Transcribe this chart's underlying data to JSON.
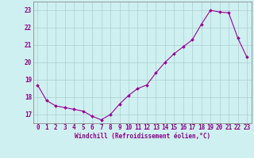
{
  "x": [
    0,
    1,
    2,
    3,
    4,
    5,
    6,
    7,
    8,
    9,
    10,
    11,
    12,
    13,
    14,
    15,
    16,
    17,
    18,
    19,
    20,
    21,
    22,
    23
  ],
  "y": [
    18.7,
    17.8,
    17.5,
    17.4,
    17.3,
    17.2,
    16.9,
    16.7,
    17.0,
    17.6,
    18.1,
    18.5,
    18.7,
    19.4,
    20.0,
    20.5,
    20.9,
    21.3,
    22.2,
    23.0,
    22.9,
    22.85,
    21.4,
    20.3
  ],
  "line_color": "#990099",
  "marker_color": "#990099",
  "bg_color": "#cff0f0",
  "grid_color": "#aacece",
  "xlabel": "Windchill (Refroidissement éolien,°C)",
  "ylim": [
    16.5,
    23.5
  ],
  "xlim": [
    -0.5,
    23.5
  ],
  "yticks": [
    17,
    18,
    19,
    20,
    21,
    22,
    23
  ],
  "xtick_labels": [
    "0",
    "1",
    "2",
    "3",
    "4",
    "5",
    "6",
    "7",
    "8",
    "9",
    "10",
    "11",
    "12",
    "13",
    "14",
    "15",
    "16",
    "17",
    "18",
    "19",
    "20",
    "21",
    "22",
    "23"
  ],
  "font_color": "#880088",
  "axis_fontsize": 5.5,
  "tick_fontsize": 5.5,
  "linewidth": 0.8,
  "markersize": 2.0
}
